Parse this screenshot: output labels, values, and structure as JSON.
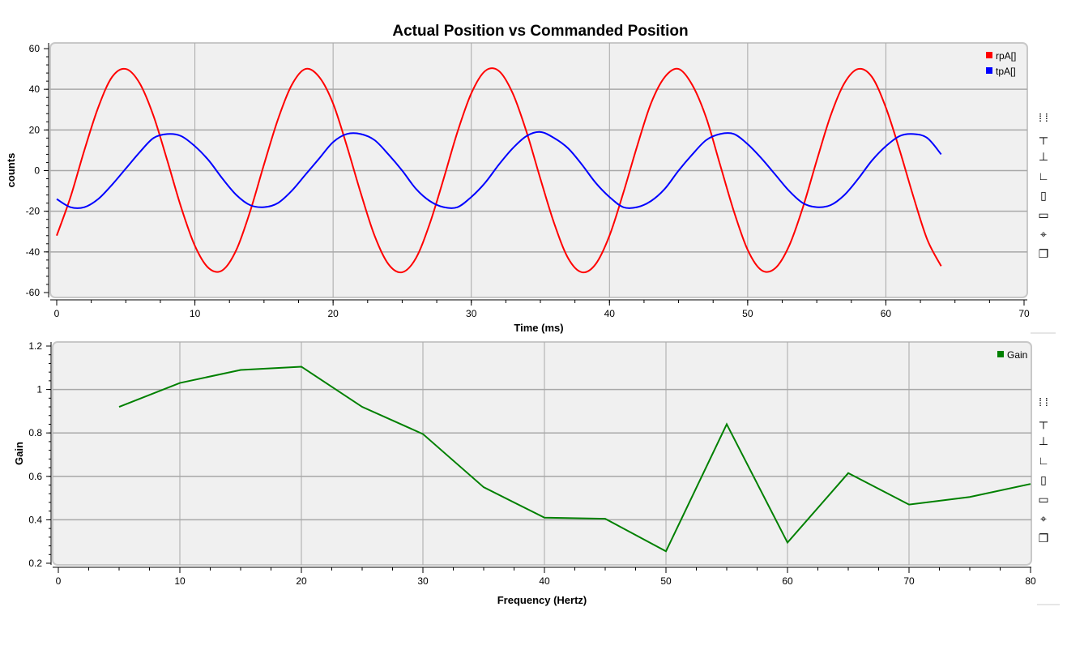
{
  "chart_data": [
    {
      "type": "line",
      "title": "Actual Position vs Commanded Position",
      "xlabel": "Time (ms)",
      "ylabel": "counts",
      "xlim": [
        0,
        70
      ],
      "ylim": [
        -60,
        60
      ],
      "xticks": [
        "0",
        "10",
        "20",
        "30",
        "40",
        "50",
        "60",
        "70"
      ],
      "yticks": [
        "60",
        "40",
        "20",
        "0",
        "-20",
        "-40",
        "-60"
      ],
      "grid": true,
      "legend_position": "top-right",
      "x": [
        0,
        1,
        2,
        3,
        4,
        5,
        6,
        7,
        8,
        9,
        10,
        11,
        12,
        13,
        14,
        15,
        16,
        17,
        18,
        19,
        20,
        21,
        22,
        23,
        24,
        25,
        26,
        27,
        28,
        29,
        30,
        31,
        32,
        33,
        34,
        35,
        36,
        37,
        38,
        39,
        40,
        41,
        42,
        43,
        44,
        45,
        46,
        47,
        48,
        49,
        50,
        51,
        52,
        53,
        54,
        55,
        56,
        57,
        58,
        59,
        60,
        61,
        62,
        63,
        64
      ],
      "series": [
        {
          "name": "rpA[]",
          "color": "#ff0000",
          "values": [
            -32,
            -13,
            10,
            31,
            46,
            50,
            43,
            27,
            5,
            -18,
            -37,
            -48,
            -49,
            -39,
            -20,
            3,
            25,
            42,
            50,
            46,
            33,
            12,
            -11,
            -32,
            -46,
            -50,
            -43,
            -26,
            -4,
            19,
            38,
            49,
            49,
            38,
            19,
            -4,
            -26,
            -43,
            -50,
            -46,
            -32,
            -11,
            12,
            33,
            46,
            50,
            42,
            26,
            3,
            -20,
            -39,
            -49,
            -48,
            -37,
            -18,
            5,
            27,
            43,
            50,
            46,
            31,
            10,
            -13,
            -34,
            -47
          ]
        },
        {
          "name": "tpA[]",
          "color": "#0000ff",
          "values": [
            -14,
            -18,
            -18,
            -14,
            -7,
            1,
            9,
            16,
            18,
            17,
            12,
            5,
            -4,
            -12,
            -17,
            -18,
            -16,
            -10,
            -2,
            6,
            14,
            18,
            18,
            15,
            8,
            0,
            -9,
            -15,
            -18,
            -18,
            -13,
            -6,
            3,
            11,
            17,
            19,
            16,
            11,
            3,
            -6,
            -13,
            -18,
            -18,
            -15,
            -9,
            0,
            8,
            15,
            18,
            18,
            13,
            6,
            -2,
            -10,
            -16,
            -18,
            -17,
            -12,
            -4,
            5,
            12,
            17,
            18,
            16,
            8
          ]
        }
      ]
    },
    {
      "type": "line",
      "title": "",
      "xlabel": "Frequency (Hertz)",
      "ylabel": "Gain",
      "xlim": [
        0,
        80
      ],
      "ylim": [
        0.2,
        1.2
      ],
      "xticks": [
        "0",
        "10",
        "20",
        "30",
        "40",
        "50",
        "60",
        "70",
        "80"
      ],
      "yticks": [
        "1.2",
        "1",
        "0.8",
        "0.6",
        "0.4",
        "0.2"
      ],
      "grid": true,
      "legend_position": "top-right",
      "x": [
        5,
        10,
        15,
        20,
        25,
        30,
        35,
        40,
        45,
        50,
        55,
        60,
        65,
        70,
        75,
        80
      ],
      "series": [
        {
          "name": "Gain",
          "color": "#008000",
          "values": [
            0.92,
            1.03,
            1.09,
            1.105,
            0.92,
            0.795,
            0.55,
            0.41,
            0.405,
            0.255,
            0.84,
            0.295,
            0.615,
            0.47,
            0.505,
            0.565
          ]
        }
      ]
    }
  ],
  "toolbar_icons": [
    "zoom-extents-icon",
    "zoom-x-icon",
    "zoom-y-icon",
    "ruler-xy-icon",
    "ruler-vertical-icon",
    "ruler-horizontal-icon",
    "crosshair-icon",
    "copy-icon"
  ]
}
